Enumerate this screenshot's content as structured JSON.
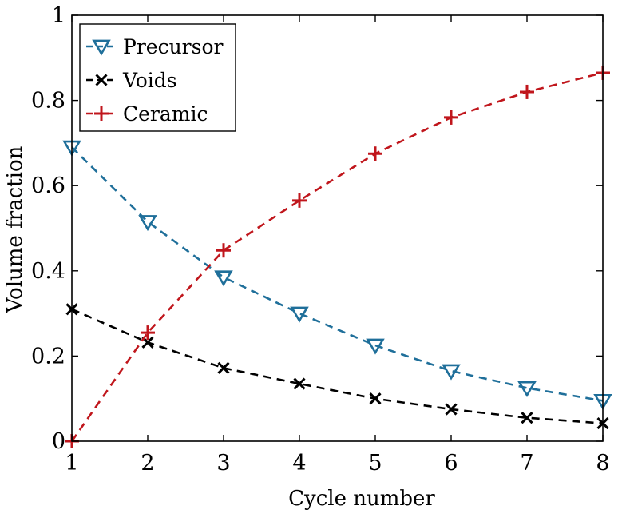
{
  "chart_data": {
    "type": "line",
    "xlabel": "Cycle number",
    "ylabel": "Volume fraction",
    "xlim": [
      1,
      8
    ],
    "ylim": [
      0,
      1
    ],
    "x": [
      1,
      2,
      3,
      4,
      5,
      6,
      7,
      8
    ],
    "xticks": [
      "1",
      "2",
      "3",
      "4",
      "5",
      "6",
      "7",
      "8"
    ],
    "yticks": [
      "0",
      "0.2",
      "0.4",
      "0.6",
      "0.8",
      "1"
    ],
    "legend_position": "top-left",
    "grid": false,
    "series": [
      {
        "name": "Precursor",
        "color": "#1f6f9a",
        "marker": "triangle-down",
        "line_style": "dashed",
        "values": [
          0.69,
          0.515,
          0.385,
          0.3,
          0.225,
          0.165,
          0.125,
          0.095
        ]
      },
      {
        "name": "Voids",
        "color": "#000000",
        "marker": "x",
        "line_style": "dashed",
        "values": [
          0.31,
          0.232,
          0.172,
          0.135,
          0.1,
          0.075,
          0.055,
          0.042
        ]
      },
      {
        "name": "Ceramic",
        "color": "#c0161c",
        "marker": "plus",
        "line_style": "dashed",
        "values": [
          0.0,
          0.255,
          0.448,
          0.565,
          0.675,
          0.76,
          0.82,
          0.865
        ]
      }
    ]
  }
}
